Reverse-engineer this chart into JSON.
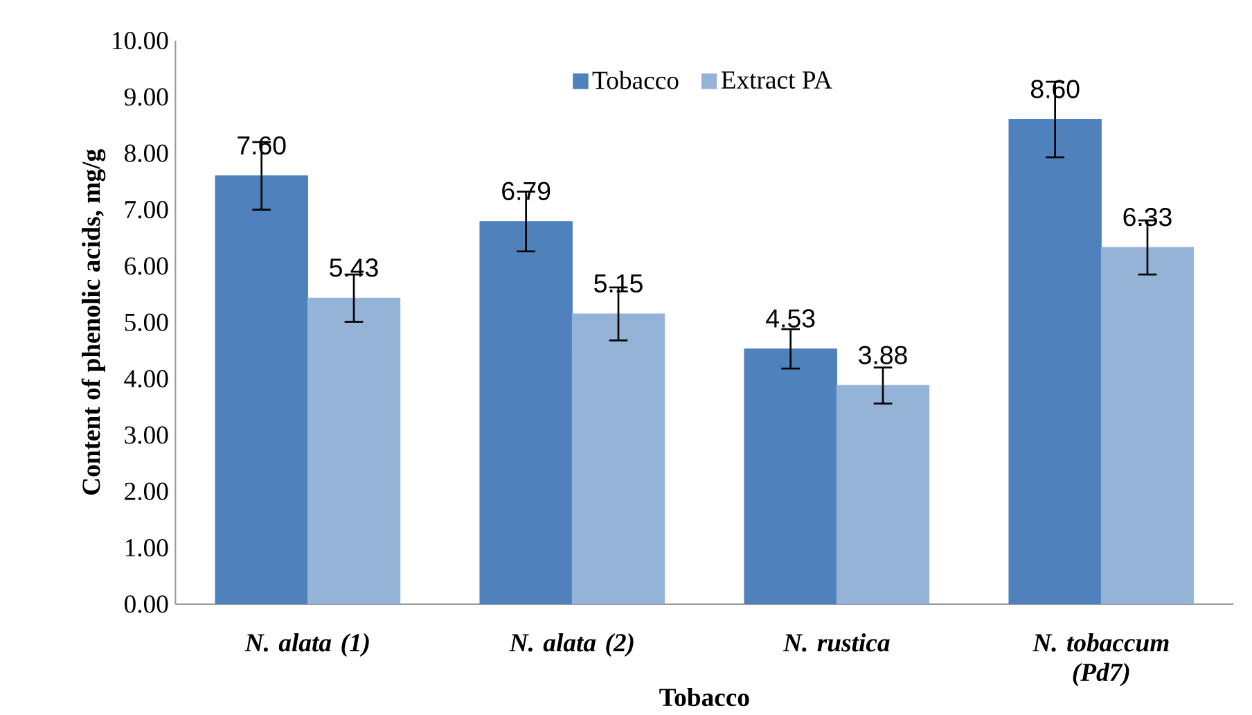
{
  "chart_data": {
    "type": "bar",
    "xlabel": "Tobacco",
    "ylabel": "Content of phenolic acids, mg/g",
    "categories": [
      "N. alata (1)",
      "N. alata (2)",
      "N. rustica",
      "N. tobaccum (Pd7)"
    ],
    "series": [
      {
        "name": "Tobacco",
        "color": "#4f81bd",
        "values": [
          7.6,
          6.79,
          4.53,
          8.6
        ],
        "errors": [
          0.6,
          0.53,
          0.35,
          0.67
        ],
        "value_labels": [
          "7.60",
          "6.79",
          "4.53",
          "8.60"
        ]
      },
      {
        "name": "Extract PA",
        "color": "#95b3d7",
        "values": [
          5.43,
          5.15,
          3.88,
          6.33
        ],
        "errors": [
          0.42,
          0.47,
          0.32,
          0.48
        ],
        "value_labels": [
          "5.43",
          "5.15",
          "3.88",
          "6.33"
        ]
      }
    ],
    "ylim": [
      0,
      10
    ],
    "yticks": [
      {
        "value": 0,
        "label": "0.00"
      },
      {
        "value": 1,
        "label": "1.00"
      },
      {
        "value": 2,
        "label": "2.00"
      },
      {
        "value": 3,
        "label": "3.00"
      },
      {
        "value": 4,
        "label": "4.00"
      },
      {
        "value": 5,
        "label": "5.00"
      },
      {
        "value": 6,
        "label": "6.00"
      },
      {
        "value": 7,
        "label": "7.00"
      },
      {
        "value": 8,
        "label": "8.00"
      },
      {
        "value": 9,
        "label": "9.00"
      },
      {
        "value": 10,
        "label": "10.00"
      }
    ],
    "grid": false,
    "legend": "top"
  }
}
